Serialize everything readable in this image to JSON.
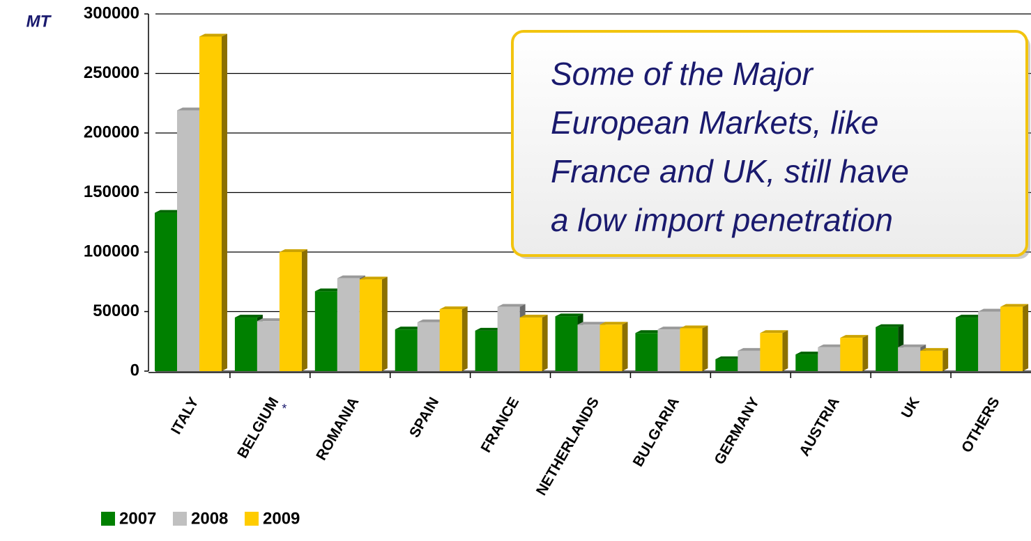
{
  "chart_data": {
    "type": "bar",
    "y_axis_label": "MT",
    "annotation": [
      "Some of the Major",
      "European Markets, like",
      "France and UK, still have",
      "a low import penetration"
    ],
    "footnote_mark": "*",
    "categories": [
      "ITALY",
      "BELGIUM",
      "ROMANIA",
      "SPAIN",
      "FRANCE",
      "NETHERLANDS",
      "BULGARIA",
      "GERMANY",
      "AUSTRIA",
      "UK",
      "OTHERS"
    ],
    "series": [
      {
        "name": "2007",
        "color": "#008000",
        "values": [
          133000,
          45000,
          67000,
          35000,
          34000,
          46000,
          32000,
          10000,
          14000,
          37000,
          45000
        ]
      },
      {
        "name": "2008",
        "color": "#c0c0c0",
        "values": [
          219000,
          42000,
          78000,
          41000,
          54000,
          39000,
          35000,
          17000,
          20000,
          20000,
          50000
        ]
      },
      {
        "name": "2009",
        "color": "#ffcc00",
        "values": [
          281000,
          100000,
          77000,
          52000,
          45000,
          39000,
          36000,
          32000,
          28000,
          17000,
          54000
        ]
      }
    ],
    "ylim": [
      0,
      300000
    ],
    "yticks": [
      0,
      50000,
      100000,
      150000,
      200000,
      250000,
      300000
    ],
    "grid": true
  }
}
